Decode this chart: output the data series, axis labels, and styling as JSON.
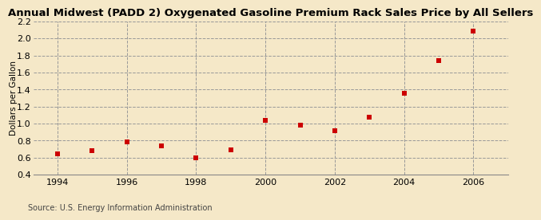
{
  "title": "Annual Midwest (PADD 2) Oxygenated Gasoline Premium Rack Sales Price by All Sellers",
  "ylabel": "Dollars per Gallon",
  "source": "Source: U.S. Energy Information Administration",
  "background_color": "#f5e8c8",
  "plot_bg_color": "#f5e8c8",
  "years": [
    1994,
    1995,
    1996,
    1997,
    1998,
    1999,
    2000,
    2001,
    2002,
    2003,
    2004,
    2005,
    2006
  ],
  "values": [
    0.65,
    0.68,
    0.79,
    0.74,
    0.6,
    0.69,
    1.04,
    0.98,
    0.92,
    1.08,
    1.36,
    1.74,
    2.09
  ],
  "marker_color": "#cc0000",
  "marker_size": 4,
  "xlim": [
    1993.3,
    2007.0
  ],
  "ylim": [
    0.4,
    2.2
  ],
  "yticks": [
    0.4,
    0.6,
    0.8,
    1.0,
    1.2,
    1.4,
    1.6,
    1.8,
    2.0,
    2.2
  ],
  "xticks": [
    1994,
    1996,
    1998,
    2000,
    2002,
    2004,
    2006
  ],
  "grid_color": "#999999",
  "grid_style": "--",
  "title_fontsize": 9.5,
  "label_fontsize": 7.5,
  "tick_fontsize": 8,
  "source_fontsize": 7.0
}
